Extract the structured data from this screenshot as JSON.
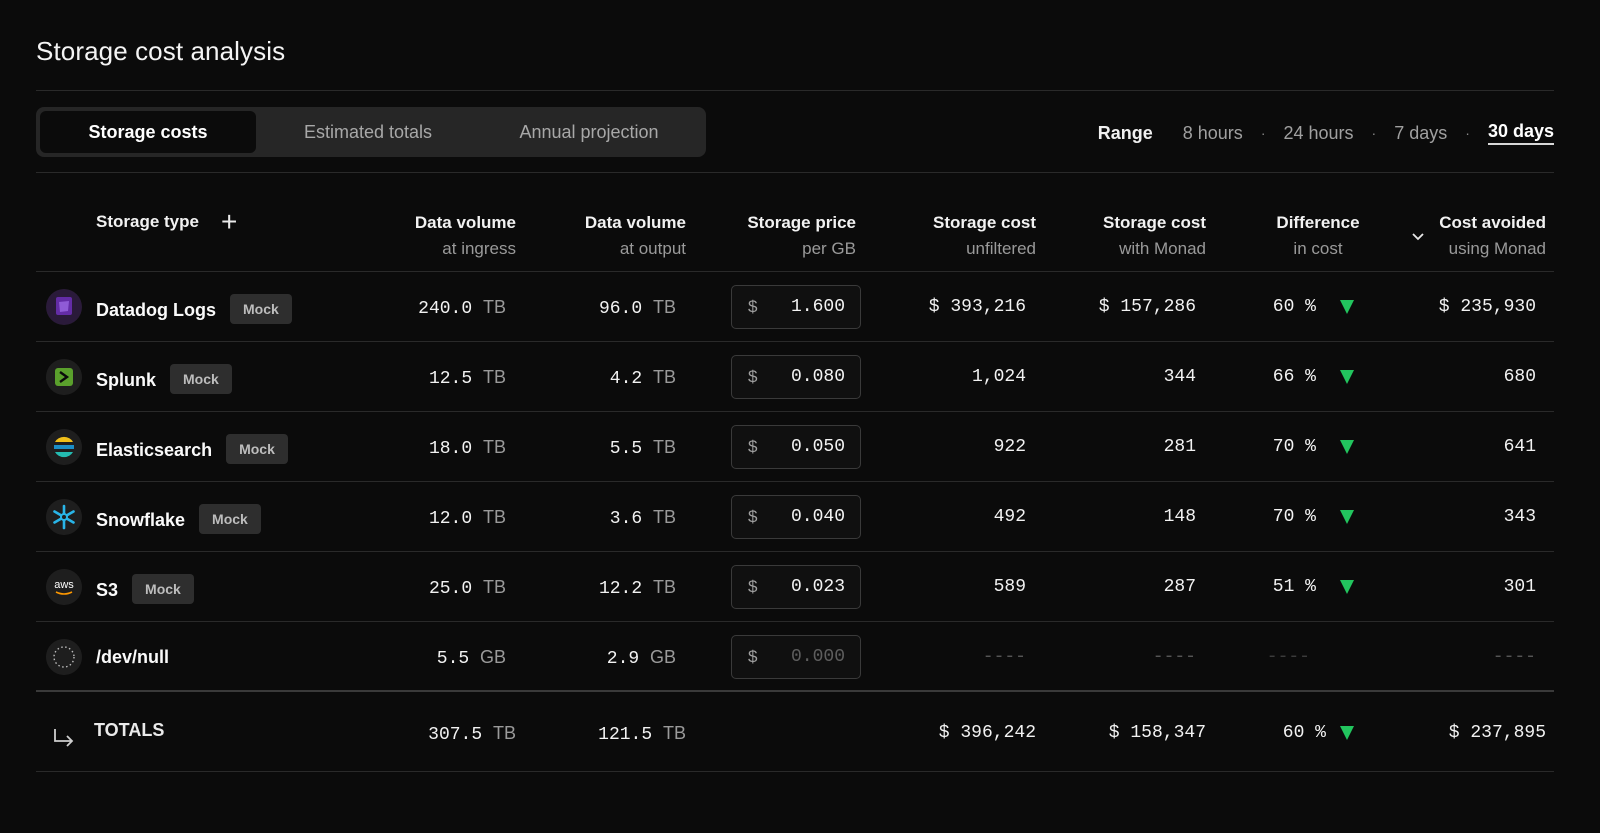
{
  "title": "Storage cost analysis",
  "tabs": [
    {
      "label": "Storage costs",
      "active": true
    },
    {
      "label": "Estimated totals",
      "active": false
    },
    {
      "label": "Annual projection",
      "active": false
    }
  ],
  "range": {
    "label": "Range",
    "options": [
      "8 hours",
      "24 hours",
      "7 days",
      "30 days"
    ],
    "selected": "30 days"
  },
  "header": {
    "storage_type": "Storage type",
    "add_icon": "plus-icon",
    "sort_icon": "chevron-down-icon",
    "cols": [
      {
        "l1": "Data volume",
        "l2": "at ingress"
      },
      {
        "l1": "Data volume",
        "l2": "at output"
      },
      {
        "l1": "Storage price",
        "l2": "per GB"
      },
      {
        "l1": "Storage cost",
        "l2": "unfiltered"
      },
      {
        "l1": "Storage cost",
        "l2": "with Monad"
      },
      {
        "l1": "Difference",
        "l2": "in cost"
      },
      {
        "l1": "Cost avoided",
        "l2": "using Monad"
      }
    ]
  },
  "rows": [
    {
      "name": "Datadog Logs",
      "badge": "Mock",
      "icon": "datadog-icon",
      "ingress": "240.0",
      "ingress_unit": "TB",
      "output": "96.0",
      "output_unit": "TB",
      "currency": "$",
      "price": "1.600",
      "unfiltered": "$ 393,216",
      "with_monad": "$ 157,286",
      "diff": "60 %",
      "avoided": "$ 235,930"
    },
    {
      "name": "Splunk",
      "badge": "Mock",
      "icon": "splunk-icon",
      "ingress": "12.5",
      "ingress_unit": "TB",
      "output": "4.2",
      "output_unit": "TB",
      "currency": "$",
      "price": "0.080",
      "unfiltered": "1,024",
      "with_monad": "344",
      "diff": "66 %",
      "avoided": "680"
    },
    {
      "name": "Elasticsearch",
      "badge": "Mock",
      "icon": "elasticsearch-icon",
      "ingress": "18.0",
      "ingress_unit": "TB",
      "output": "5.5",
      "output_unit": "TB",
      "currency": "$",
      "price": "0.050",
      "unfiltered": "922",
      "with_monad": "281",
      "diff": "70 %",
      "avoided": "641"
    },
    {
      "name": "Snowflake",
      "badge": "Mock",
      "icon": "snowflake-icon",
      "ingress": "12.0",
      "ingress_unit": "TB",
      "output": "3.6",
      "output_unit": "TB",
      "currency": "$",
      "price": "0.040",
      "unfiltered": "492",
      "with_monad": "148",
      "diff": "70 %",
      "avoided": "343"
    },
    {
      "name": "S3",
      "badge": "Mock",
      "icon": "aws-icon",
      "icon_text": "aws",
      "ingress": "25.0",
      "ingress_unit": "TB",
      "output": "12.2",
      "output_unit": "TB",
      "currency": "$",
      "price": "0.023",
      "unfiltered": "589",
      "with_monad": "287",
      "diff": "51 %",
      "avoided": "301"
    },
    {
      "name": "/dev/null",
      "icon": "devnull-icon",
      "ingress": "5.5",
      "ingress_unit": "GB",
      "output": "2.9",
      "output_unit": "GB",
      "currency": "$",
      "price": "0.000",
      "unfiltered": "----",
      "with_monad": "----",
      "diff": "----",
      "avoided": "----"
    }
  ],
  "totals": {
    "label": "TOTALS",
    "icon": "corner-down-right-icon",
    "ingress": "307.5",
    "ingress_unit": "TB",
    "output": "121.5",
    "output_unit": "TB",
    "unfiltered": "$ 396,242",
    "with_monad": "$ 158,347",
    "diff": "60 %",
    "avoided": "$ 237,895"
  },
  "colors": {
    "background": "#0b0b0b",
    "down_arrow": "#22c55e"
  }
}
